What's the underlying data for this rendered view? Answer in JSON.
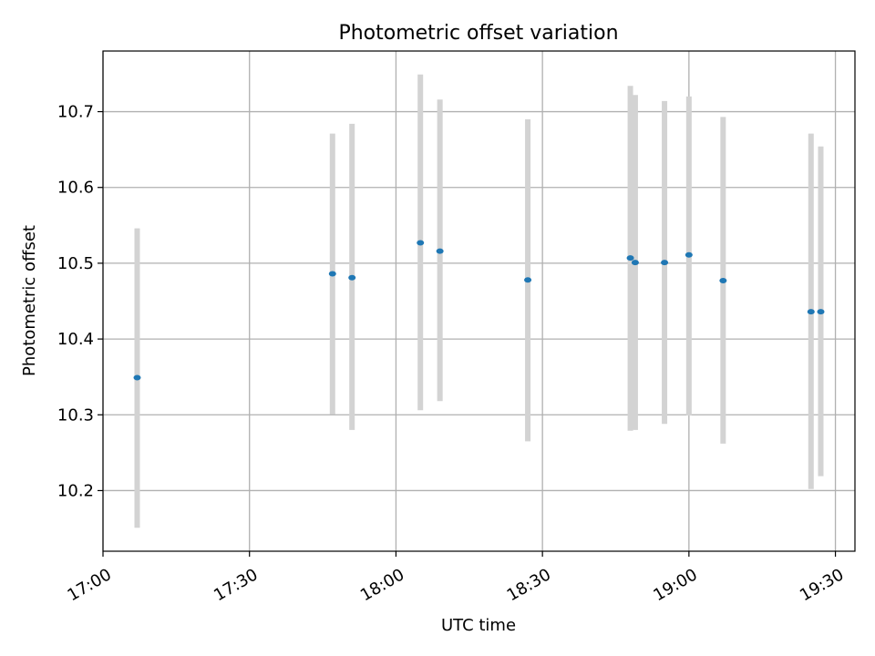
{
  "chart_data": {
    "type": "scatter",
    "title": "Photometric offset variation",
    "xlabel": "UTC time",
    "ylabel": "Photometric offset",
    "xlim": [
      "17:00",
      "19:34"
    ],
    "ylim": [
      10.12,
      10.78
    ],
    "x_ticks": [
      "17:00",
      "17:30",
      "18:00",
      "18:30",
      "19:00",
      "19:30"
    ],
    "y_ticks": [
      10.2,
      10.3,
      10.4,
      10.5,
      10.6,
      10.7
    ],
    "y_tick_labels": [
      "10.2",
      "10.3",
      "10.4",
      "10.5",
      "10.6",
      "10.7"
    ],
    "grid": true,
    "colors": {
      "points": "#1f77b4",
      "errorbars": "#d3d3d3",
      "grid": "#b0b0b0"
    },
    "points": [
      {
        "x": "17:07",
        "y": 10.349,
        "y_low": 10.151,
        "y_high": 10.546
      },
      {
        "x": "17:47",
        "y": 10.486,
        "y_low": 10.301,
        "y_high": 10.671
      },
      {
        "x": "17:51",
        "y": 10.481,
        "y_low": 10.28,
        "y_high": 10.684
      },
      {
        "x": "18:05",
        "y": 10.527,
        "y_low": 10.306,
        "y_high": 10.749
      },
      {
        "x": "18:09",
        "y": 10.516,
        "y_low": 10.318,
        "y_high": 10.716
      },
      {
        "x": "18:27",
        "y": 10.478,
        "y_low": 10.265,
        "y_high": 10.69
      },
      {
        "x": "18:48",
        "y": 10.507,
        "y_low": 10.279,
        "y_high": 10.734
      },
      {
        "x": "18:49",
        "y": 10.501,
        "y_low": 10.28,
        "y_high": 10.722
      },
      {
        "x": "18:55",
        "y": 10.501,
        "y_low": 10.288,
        "y_high": 10.714
      },
      {
        "x": "19:00",
        "y": 10.511,
        "y_low": 10.299,
        "y_high": 10.72
      },
      {
        "x": "19:07",
        "y": 10.477,
        "y_low": 10.262,
        "y_high": 10.693
      },
      {
        "x": "19:25",
        "y": 10.436,
        "y_low": 10.202,
        "y_high": 10.671
      },
      {
        "x": "19:27",
        "y": 10.436,
        "y_low": 10.219,
        "y_high": 10.654
      }
    ]
  }
}
